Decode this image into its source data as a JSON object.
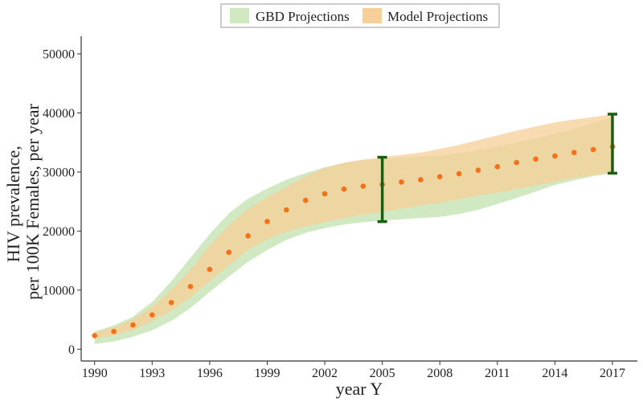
{
  "chart_data": {
    "type": "area",
    "xlabel": "year Y",
    "ylabel_lines": [
      "HIV prevalence,",
      "per 100K Females, per year"
    ],
    "xlim": [
      1989.3,
      2018.3
    ],
    "ylim": [
      -2000,
      53000
    ],
    "x_ticks": [
      1990,
      1993,
      1996,
      1999,
      2002,
      2005,
      2008,
      2011,
      2014,
      2017
    ],
    "y_ticks": [
      0,
      10000,
      20000,
      30000,
      40000,
      50000
    ],
    "legend_position": "top-center",
    "grid": false,
    "legend": [
      {
        "label": "GBD Projections",
        "color": "#cfe8bf"
      },
      {
        "label": "Model Projections",
        "color": "#f7cf98"
      }
    ],
    "gbd_band": {
      "name": "GBD Projections",
      "x": [
        1990,
        1991,
        1992,
        1993,
        1994,
        1995,
        1996,
        1997,
        1998,
        1999,
        2000,
        2001,
        2002,
        2003,
        2004,
        2005,
        2006,
        2007,
        2008,
        2009,
        2010,
        2011,
        2012,
        2013,
        2014,
        2015,
        2016,
        2017
      ],
      "lower": [
        900,
        1300,
        2100,
        3200,
        4800,
        7000,
        9700,
        12300,
        14800,
        16800,
        18500,
        19700,
        20500,
        21100,
        21500,
        21800,
        22000,
        22200,
        22400,
        22900,
        23600,
        24600,
        25600,
        26700,
        27800,
        28600,
        29300,
        29800
      ],
      "upper": [
        3000,
        4000,
        5500,
        8000,
        11500,
        15500,
        19500,
        23000,
        25500,
        27200,
        28700,
        29800,
        30800,
        31500,
        32000,
        32200,
        32400,
        32600,
        32800,
        33200,
        33700,
        34300,
        35000,
        35700,
        36500,
        37300,
        38300,
        39300
      ]
    },
    "model_band": {
      "name": "Model Projections",
      "x": [
        1990,
        1991,
        1992,
        1993,
        1994,
        1995,
        1996,
        1997,
        1998,
        1999,
        2000,
        2001,
        2002,
        2003,
        2004,
        2005,
        2006,
        2007,
        2008,
        2009,
        2010,
        2011,
        2012,
        2013,
        2014,
        2015,
        2016,
        2017
      ],
      "lower": [
        1800,
        2300,
        3200,
        4800,
        6500,
        8800,
        11500,
        14200,
        16800,
        18600,
        19900,
        20800,
        21500,
        22200,
        22800,
        23200,
        23800,
        24300,
        24800,
        25400,
        26000,
        26500,
        27100,
        27700,
        28400,
        29000,
        29500,
        29800
      ],
      "upper": [
        2800,
        3700,
        5100,
        7200,
        10000,
        13500,
        17500,
        21000,
        23800,
        25700,
        27500,
        29300,
        30700,
        31600,
        32100,
        32500,
        32900,
        33300,
        33900,
        34600,
        35400,
        36200,
        37000,
        37700,
        38400,
        38900,
        39300,
        39800
      ]
    },
    "points": {
      "name": "Model point estimates",
      "color": "#f4711a",
      "x": [
        1990,
        1991,
        1992,
        1993,
        1994,
        1995,
        1996,
        1997,
        1998,
        1999,
        2000,
        2001,
        2002,
        2003,
        2004,
        2005,
        2006,
        2007,
        2008,
        2009,
        2010,
        2011,
        2012,
        2013,
        2014,
        2015,
        2016,
        2017
      ],
      "y": [
        2300,
        3000,
        4100,
        5800,
        7900,
        10600,
        13500,
        16400,
        19200,
        21600,
        23600,
        25200,
        26300,
        27100,
        27600,
        27900,
        28300,
        28700,
        29200,
        29700,
        30300,
        30900,
        31600,
        32200,
        32700,
        33300,
        33800,
        34300
      ]
    },
    "error_bars": {
      "color": "#1b5e12",
      "items": [
        {
          "x": 2005,
          "low": 21600,
          "high": 32500
        },
        {
          "x": 2017,
          "low": 29800,
          "high": 39800
        }
      ]
    }
  }
}
